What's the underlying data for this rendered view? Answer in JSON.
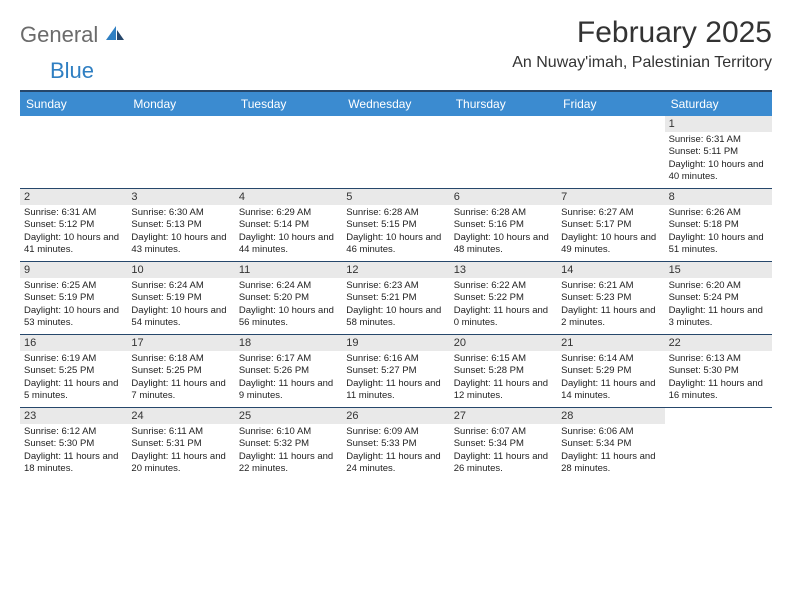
{
  "brand": {
    "part1": "General",
    "part2": "Blue"
  },
  "title": "February 2025",
  "location": "An Nuway'imah, Palestinian Territory",
  "colors": {
    "header_bg": "#3b8bd0",
    "header_border": "#26476b",
    "daynum_bg": "#e9e9e9",
    "logo_gray": "#6b6b6b",
    "logo_blue": "#2f7fc2"
  },
  "day_names": [
    "Sunday",
    "Monday",
    "Tuesday",
    "Wednesday",
    "Thursday",
    "Friday",
    "Saturday"
  ],
  "weeks": [
    [
      {
        "n": null
      },
      {
        "n": null
      },
      {
        "n": null
      },
      {
        "n": null
      },
      {
        "n": null
      },
      {
        "n": null
      },
      {
        "n": "1",
        "sunrise": "Sunrise: 6:31 AM",
        "sunset": "Sunset: 5:11 PM",
        "daylight": "Daylight: 10 hours and 40 minutes."
      }
    ],
    [
      {
        "n": "2",
        "sunrise": "Sunrise: 6:31 AM",
        "sunset": "Sunset: 5:12 PM",
        "daylight": "Daylight: 10 hours and 41 minutes."
      },
      {
        "n": "3",
        "sunrise": "Sunrise: 6:30 AM",
        "sunset": "Sunset: 5:13 PM",
        "daylight": "Daylight: 10 hours and 43 minutes."
      },
      {
        "n": "4",
        "sunrise": "Sunrise: 6:29 AM",
        "sunset": "Sunset: 5:14 PM",
        "daylight": "Daylight: 10 hours and 44 minutes."
      },
      {
        "n": "5",
        "sunrise": "Sunrise: 6:28 AM",
        "sunset": "Sunset: 5:15 PM",
        "daylight": "Daylight: 10 hours and 46 minutes."
      },
      {
        "n": "6",
        "sunrise": "Sunrise: 6:28 AM",
        "sunset": "Sunset: 5:16 PM",
        "daylight": "Daylight: 10 hours and 48 minutes."
      },
      {
        "n": "7",
        "sunrise": "Sunrise: 6:27 AM",
        "sunset": "Sunset: 5:17 PM",
        "daylight": "Daylight: 10 hours and 49 minutes."
      },
      {
        "n": "8",
        "sunrise": "Sunrise: 6:26 AM",
        "sunset": "Sunset: 5:18 PM",
        "daylight": "Daylight: 10 hours and 51 minutes."
      }
    ],
    [
      {
        "n": "9",
        "sunrise": "Sunrise: 6:25 AM",
        "sunset": "Sunset: 5:19 PM",
        "daylight": "Daylight: 10 hours and 53 minutes."
      },
      {
        "n": "10",
        "sunrise": "Sunrise: 6:24 AM",
        "sunset": "Sunset: 5:19 PM",
        "daylight": "Daylight: 10 hours and 54 minutes."
      },
      {
        "n": "11",
        "sunrise": "Sunrise: 6:24 AM",
        "sunset": "Sunset: 5:20 PM",
        "daylight": "Daylight: 10 hours and 56 minutes."
      },
      {
        "n": "12",
        "sunrise": "Sunrise: 6:23 AM",
        "sunset": "Sunset: 5:21 PM",
        "daylight": "Daylight: 10 hours and 58 minutes."
      },
      {
        "n": "13",
        "sunrise": "Sunrise: 6:22 AM",
        "sunset": "Sunset: 5:22 PM",
        "daylight": "Daylight: 11 hours and 0 minutes."
      },
      {
        "n": "14",
        "sunrise": "Sunrise: 6:21 AM",
        "sunset": "Sunset: 5:23 PM",
        "daylight": "Daylight: 11 hours and 2 minutes."
      },
      {
        "n": "15",
        "sunrise": "Sunrise: 6:20 AM",
        "sunset": "Sunset: 5:24 PM",
        "daylight": "Daylight: 11 hours and 3 minutes."
      }
    ],
    [
      {
        "n": "16",
        "sunrise": "Sunrise: 6:19 AM",
        "sunset": "Sunset: 5:25 PM",
        "daylight": "Daylight: 11 hours and 5 minutes."
      },
      {
        "n": "17",
        "sunrise": "Sunrise: 6:18 AM",
        "sunset": "Sunset: 5:25 PM",
        "daylight": "Daylight: 11 hours and 7 minutes."
      },
      {
        "n": "18",
        "sunrise": "Sunrise: 6:17 AM",
        "sunset": "Sunset: 5:26 PM",
        "daylight": "Daylight: 11 hours and 9 minutes."
      },
      {
        "n": "19",
        "sunrise": "Sunrise: 6:16 AM",
        "sunset": "Sunset: 5:27 PM",
        "daylight": "Daylight: 11 hours and 11 minutes."
      },
      {
        "n": "20",
        "sunrise": "Sunrise: 6:15 AM",
        "sunset": "Sunset: 5:28 PM",
        "daylight": "Daylight: 11 hours and 12 minutes."
      },
      {
        "n": "21",
        "sunrise": "Sunrise: 6:14 AM",
        "sunset": "Sunset: 5:29 PM",
        "daylight": "Daylight: 11 hours and 14 minutes."
      },
      {
        "n": "22",
        "sunrise": "Sunrise: 6:13 AM",
        "sunset": "Sunset: 5:30 PM",
        "daylight": "Daylight: 11 hours and 16 minutes."
      }
    ],
    [
      {
        "n": "23",
        "sunrise": "Sunrise: 6:12 AM",
        "sunset": "Sunset: 5:30 PM",
        "daylight": "Daylight: 11 hours and 18 minutes."
      },
      {
        "n": "24",
        "sunrise": "Sunrise: 6:11 AM",
        "sunset": "Sunset: 5:31 PM",
        "daylight": "Daylight: 11 hours and 20 minutes."
      },
      {
        "n": "25",
        "sunrise": "Sunrise: 6:10 AM",
        "sunset": "Sunset: 5:32 PM",
        "daylight": "Daylight: 11 hours and 22 minutes."
      },
      {
        "n": "26",
        "sunrise": "Sunrise: 6:09 AM",
        "sunset": "Sunset: 5:33 PM",
        "daylight": "Daylight: 11 hours and 24 minutes."
      },
      {
        "n": "27",
        "sunrise": "Sunrise: 6:07 AM",
        "sunset": "Sunset: 5:34 PM",
        "daylight": "Daylight: 11 hours and 26 minutes."
      },
      {
        "n": "28",
        "sunrise": "Sunrise: 6:06 AM",
        "sunset": "Sunset: 5:34 PM",
        "daylight": "Daylight: 11 hours and 28 minutes."
      },
      {
        "n": null
      }
    ]
  ]
}
